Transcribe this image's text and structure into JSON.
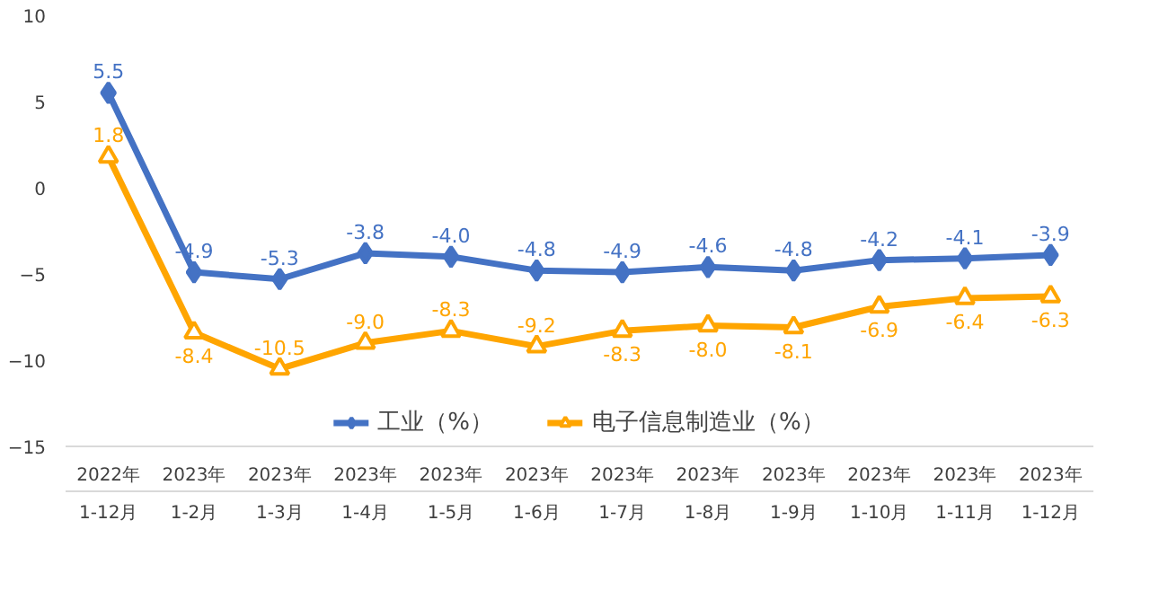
{
  "chart_data": {
    "type": "line",
    "categories": [
      "2022年\n1-12月",
      "2023年\n1-2月",
      "2023年\n1-3月",
      "2023年\n1-4月",
      "2023年\n1-5月",
      "2023年\n1-6月",
      "2023年\n1-7月",
      "2023年\n1-8月",
      "2023年\n1-9月",
      "2023年\n1-10月",
      "2023年\n1-11月",
      "2023年\n1-12月"
    ],
    "series": [
      {
        "name": "工业（%）",
        "color": "#4472c4",
        "marker": "diamond",
        "values": [
          5.5,
          -4.9,
          -5.3,
          -3.8,
          -4.0,
          -4.8,
          -4.9,
          -4.6,
          -4.8,
          -4.2,
          -4.1,
          -3.9
        ],
        "value_labels": [
          "5.5",
          "-4.9",
          "-5.3",
          "-3.8",
          "-4.0",
          "-4.8",
          "-4.9",
          "-4.6",
          "-4.8",
          "-4.2",
          "-4.1",
          "-3.9"
        ]
      },
      {
        "name": "电子信息制造业（%）",
        "color": "#ffa500",
        "marker": "triangle",
        "values": [
          1.8,
          -8.4,
          -10.5,
          -9.0,
          -8.3,
          -9.2,
          -8.3,
          -8.0,
          -8.1,
          -6.9,
          -6.4,
          -6.3
        ],
        "value_labels": [
          "1.8",
          "-8.4",
          "-10.5",
          "-9.0",
          "-8.3",
          "-9.2",
          "-8.3",
          "-8.0",
          "-8.1",
          "-6.9",
          "-6.4",
          "-6.3"
        ]
      }
    ],
    "ylim": [
      -15,
      10
    ],
    "yticks": [
      -15,
      -10,
      -5,
      0,
      5,
      10
    ],
    "grid": false,
    "legend": "bottom",
    "line_style": "solid"
  }
}
